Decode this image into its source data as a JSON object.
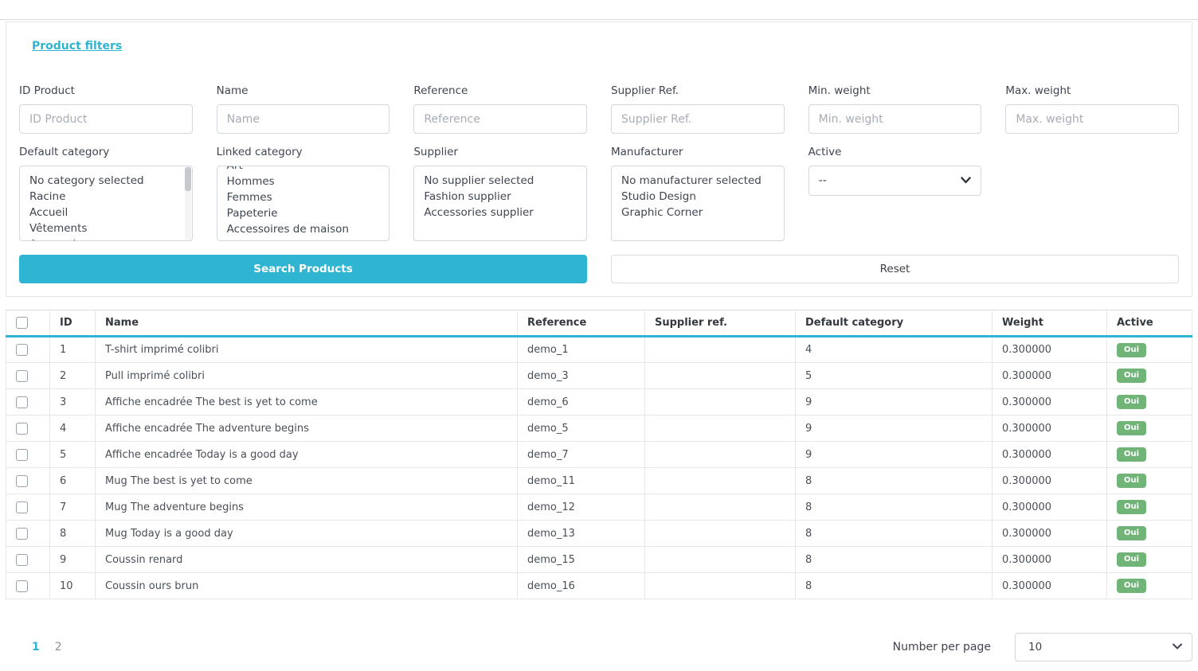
{
  "accent_color": "#2fb5d2",
  "filters": {
    "title": "Product filters",
    "text_fields": [
      {
        "label": "ID Product",
        "placeholder": "ID Product",
        "value": ""
      },
      {
        "label": "Name",
        "placeholder": "Name",
        "value": ""
      },
      {
        "label": "Reference",
        "placeholder": "Reference",
        "value": ""
      },
      {
        "label": "Supplier Ref.",
        "placeholder": "Supplier Ref.",
        "value": ""
      },
      {
        "label": "Min. weight",
        "placeholder": "Min. weight",
        "value": ""
      },
      {
        "label": "Max. weight",
        "placeholder": "Max. weight",
        "value": ""
      }
    ],
    "list_fields": [
      {
        "label": "Default category",
        "options": [
          "No category selected",
          "Racine",
          "Accueil",
          "Vêtements",
          "Accessoires"
        ],
        "clip": "bottom",
        "scrollbar": true
      },
      {
        "label": "Linked category",
        "options": [
          "Art",
          "Hommes",
          "Femmes",
          "Papeterie",
          "Accessoires de maison"
        ],
        "clip": "top",
        "scrollbar": false
      },
      {
        "label": "Supplier",
        "options": [
          "No supplier selected",
          "Fashion supplier",
          "Accessories supplier"
        ],
        "clip": "none",
        "scrollbar": false
      },
      {
        "label": "Manufacturer",
        "options": [
          "No manufacturer selected",
          "Studio Design",
          "Graphic Corner"
        ],
        "clip": "none",
        "scrollbar": false
      }
    ],
    "active_field": {
      "label": "Active",
      "selected": "--"
    },
    "buttons": {
      "search": "Search Products",
      "reset": "Reset"
    }
  },
  "table": {
    "headers": {
      "id": "ID",
      "name": "Name",
      "reference": "Reference",
      "supplier_ref": "Supplier ref.",
      "default_category": "Default category",
      "weight": "Weight",
      "active": "Active"
    },
    "rows": [
      {
        "id": "1",
        "name": "T-shirt imprimé colibri",
        "reference": "demo_1",
        "supplier_ref": "",
        "default_category": "4",
        "weight": "0.300000",
        "active": "Oui"
      },
      {
        "id": "2",
        "name": "Pull imprimé colibri",
        "reference": "demo_3",
        "supplier_ref": "",
        "default_category": "5",
        "weight": "0.300000",
        "active": "Oui"
      },
      {
        "id": "3",
        "name": "Affiche encadrée The best is yet to come",
        "reference": "demo_6",
        "supplier_ref": "",
        "default_category": "9",
        "weight": "0.300000",
        "active": "Oui"
      },
      {
        "id": "4",
        "name": "Affiche encadrée The adventure begins",
        "reference": "demo_5",
        "supplier_ref": "",
        "default_category": "9",
        "weight": "0.300000",
        "active": "Oui"
      },
      {
        "id": "5",
        "name": "Affiche encadrée Today is a good day",
        "reference": "demo_7",
        "supplier_ref": "",
        "default_category": "9",
        "weight": "0.300000",
        "active": "Oui"
      },
      {
        "id": "6",
        "name": "Mug The best is yet to come",
        "reference": "demo_11",
        "supplier_ref": "",
        "default_category": "8",
        "weight": "0.300000",
        "active": "Oui"
      },
      {
        "id": "7",
        "name": "Mug The adventure begins",
        "reference": "demo_12",
        "supplier_ref": "",
        "default_category": "8",
        "weight": "0.300000",
        "active": "Oui"
      },
      {
        "id": "8",
        "name": "Mug Today is a good day",
        "reference": "demo_13",
        "supplier_ref": "",
        "default_category": "8",
        "weight": "0.300000",
        "active": "Oui"
      },
      {
        "id": "9",
        "name": "Coussin renard",
        "reference": "demo_15",
        "supplier_ref": "",
        "default_category": "8",
        "weight": "0.300000",
        "active": "Oui"
      },
      {
        "id": "10",
        "name": "Coussin ours brun",
        "reference": "demo_16",
        "supplier_ref": "",
        "default_category": "8",
        "weight": "0.300000",
        "active": "Oui"
      }
    ],
    "active_badge_color": "#70b478"
  },
  "pagination": {
    "pages": [
      "1",
      "2"
    ],
    "current_page": "1",
    "per_page_label": "Number per page",
    "per_page_value": "10"
  }
}
